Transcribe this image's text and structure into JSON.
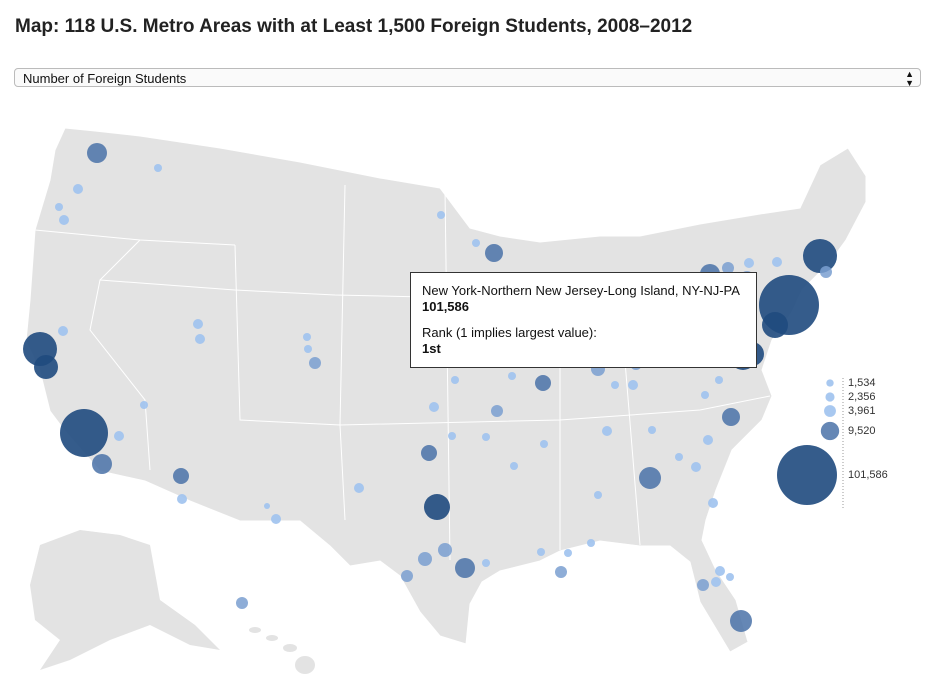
{
  "title": "Map: 118 U.S. Metro Areas with at Least 1,500 Foreign Students, 2008–2012",
  "select": {
    "option": "Number of Foreign Students"
  },
  "tooltip": {
    "name": "New York-Northern New Jersey-Long Island, NY-NJ-PA",
    "value": {
      "value": 101586,
      "label": "101,586"
    },
    "rank_label": "Rank (1 implies largest value):",
    "rank": "1st"
  },
  "legend": {
    "items": [
      {
        "value": 1534,
        "label": "1,534"
      },
      {
        "value": 2356,
        "label": "2,356"
      },
      {
        "value": 3961,
        "label": "3,961"
      },
      {
        "value": 9520,
        "label": "9,520"
      },
      {
        "value": 101586,
        "label": "101,586"
      }
    ]
  }
}
